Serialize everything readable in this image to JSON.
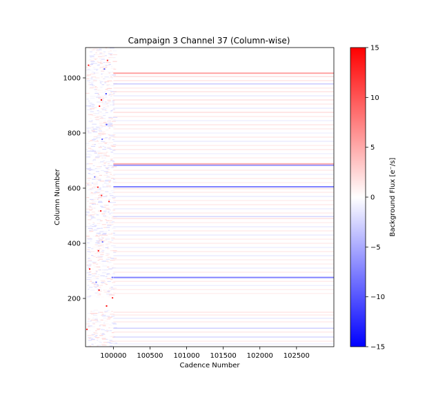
{
  "chart_data": {
    "type": "heatmap",
    "title": "Campaign 3 Channel 37 (Column-wise)",
    "xlabel": "Cadence Number",
    "ylabel": "Column Number",
    "xlim": [
      99620,
      103010
    ],
    "ylim": [
      25,
      1110
    ],
    "x_ticks": [
      100000,
      100500,
      101000,
      101500,
      102000,
      102500
    ],
    "y_ticks": [
      200,
      400,
      600,
      800,
      1000
    ],
    "colorbar": {
      "label": "Background Flux [e$^-$/s]",
      "label_display": "Background Flux [e⁻/s]",
      "colormap": "bwr",
      "vmin": -15,
      "vmax": 15,
      "ticks": [
        -15,
        -10,
        -5,
        0,
        5,
        10,
        15
      ],
      "colors": {
        "low": "#0000ff",
        "mid": "#ffffff",
        "high": "#ff0000"
      }
    },
    "noisy_cadence_range": [
      99620,
      100000
    ],
    "column_bands": [
      {
        "column": 1017,
        "flux": 5.5
      },
      {
        "column": 1005,
        "flux": 2.5
      },
      {
        "column": 990,
        "flux": 1.8
      },
      {
        "column": 978,
        "flux": -4.0
      },
      {
        "column": 963,
        "flux": 1.5
      },
      {
        "column": 950,
        "flux": 2.0
      },
      {
        "column": 935,
        "flux": -1.5
      },
      {
        "column": 920,
        "flux": 2.2
      },
      {
        "column": 905,
        "flux": 1.6
      },
      {
        "column": 890,
        "flux": -1.4
      },
      {
        "column": 875,
        "flux": 2.4
      },
      {
        "column": 860,
        "flux": 1.5
      },
      {
        "column": 845,
        "flux": -1.2
      },
      {
        "column": 830,
        "flux": 1.8
      },
      {
        "column": 815,
        "flux": 1.4
      },
      {
        "column": 800,
        "flux": -1.0
      },
      {
        "column": 785,
        "flux": 1.6
      },
      {
        "column": 770,
        "flux": -1.5
      },
      {
        "column": 755,
        "flux": 1.3
      },
      {
        "column": 740,
        "flux": 1.7
      },
      {
        "column": 725,
        "flux": -1.1
      },
      {
        "column": 710,
        "flux": 1.2
      },
      {
        "column": 688,
        "flux": 5.0
      },
      {
        "column": 683,
        "flux": -6.0
      },
      {
        "column": 665,
        "flux": 1.6
      },
      {
        "column": 650,
        "flux": -1.2
      },
      {
        "column": 635,
        "flux": 1.5
      },
      {
        "column": 620,
        "flux": 1.2
      },
      {
        "column": 605,
        "flux": -7.5
      },
      {
        "column": 598,
        "flux": 2.0
      },
      {
        "column": 585,
        "flux": 1.4
      },
      {
        "column": 570,
        "flux": -1.5
      },
      {
        "column": 555,
        "flux": 1.3
      },
      {
        "column": 540,
        "flux": 1.6
      },
      {
        "column": 525,
        "flux": -1.3
      },
      {
        "column": 510,
        "flux": 1.4
      },
      {
        "column": 497,
        "flux": -3.0
      },
      {
        "column": 490,
        "flux": 2.2
      },
      {
        "column": 475,
        "flux": 1.3
      },
      {
        "column": 460,
        "flux": -1.4
      },
      {
        "column": 445,
        "flux": 1.5
      },
      {
        "column": 430,
        "flux": -1.6
      },
      {
        "column": 415,
        "flux": 1.3
      },
      {
        "column": 400,
        "flux": 1.4
      },
      {
        "column": 385,
        "flux": -1.2
      },
      {
        "column": 370,
        "flux": 1.5
      },
      {
        "column": 355,
        "flux": -1.5
      },
      {
        "column": 340,
        "flux": 1.3
      },
      {
        "column": 325,
        "flux": 1.2
      },
      {
        "column": 310,
        "flux": -1.3
      },
      {
        "column": 295,
        "flux": 1.4
      },
      {
        "column": 276,
        "flux": -7.5
      },
      {
        "column": 262,
        "flux": 1.5
      },
      {
        "column": 247,
        "flux": -1.2
      },
      {
        "column": 232,
        "flux": 1.3
      },
      {
        "column": 218,
        "flux": 1.1
      },
      {
        "column": 150,
        "flux": 1.8
      },
      {
        "column": 140,
        "flux": 1.5
      },
      {
        "column": 128,
        "flux": -1.6
      },
      {
        "column": 115,
        "flux": 1.4
      },
      {
        "column": 92,
        "flux": -3.5
      },
      {
        "column": 78,
        "flux": 1.6
      },
      {
        "column": 60,
        "flux": -3.0
      },
      {
        "column": 45,
        "flux": 1.4
      },
      {
        "column": 35,
        "flux": -1.2
      }
    ],
    "quiet_column_ranges": [
      [
        160,
        205
      ]
    ]
  }
}
